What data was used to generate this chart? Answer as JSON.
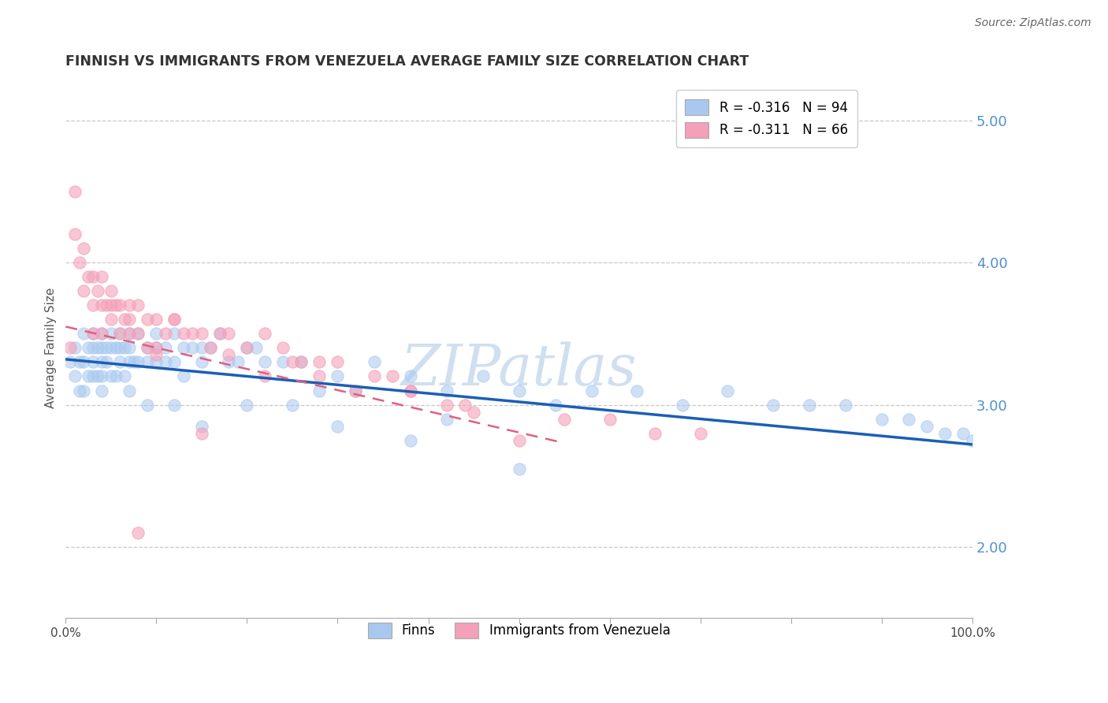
{
  "title": "FINNISH VS IMMIGRANTS FROM VENEZUELA AVERAGE FAMILY SIZE CORRELATION CHART",
  "source": "Source: ZipAtlas.com",
  "ylabel": "Average Family Size",
  "right_yticks": [
    2.0,
    3.0,
    4.0,
    5.0
  ],
  "legend_finn_r": "R = -0.316",
  "legend_finn_n": "N = 94",
  "legend_immig_r": "R = -0.311",
  "legend_immig_n": "N = 66",
  "finn_color": "#a8c8f0",
  "immig_color": "#f4a0b8",
  "finn_line_color": "#1a5fb4",
  "immig_line_color": "#e06080",
  "xlim": [
    0.0,
    1.0
  ],
  "ylim": [
    1.5,
    5.3
  ],
  "finn_scatter_x": [
    0.005,
    0.01,
    0.01,
    0.015,
    0.015,
    0.02,
    0.02,
    0.02,
    0.025,
    0.025,
    0.03,
    0.03,
    0.03,
    0.03,
    0.035,
    0.035,
    0.04,
    0.04,
    0.04,
    0.04,
    0.04,
    0.045,
    0.045,
    0.05,
    0.05,
    0.05,
    0.055,
    0.055,
    0.06,
    0.06,
    0.06,
    0.065,
    0.065,
    0.07,
    0.07,
    0.07,
    0.075,
    0.08,
    0.08,
    0.09,
    0.09,
    0.1,
    0.1,
    0.1,
    0.11,
    0.11,
    0.12,
    0.12,
    0.13,
    0.13,
    0.14,
    0.15,
    0.15,
    0.16,
    0.17,
    0.18,
    0.19,
    0.2,
    0.21,
    0.22,
    0.24,
    0.26,
    0.28,
    0.3,
    0.32,
    0.34,
    0.38,
    0.42,
    0.46,
    0.5,
    0.54,
    0.58,
    0.63,
    0.68,
    0.73,
    0.78,
    0.82,
    0.86,
    0.9,
    0.93,
    0.95,
    0.97,
    0.99,
    1.0,
    0.5,
    0.38,
    0.42,
    0.3,
    0.25,
    0.2,
    0.15,
    0.12,
    0.09,
    0.07
  ],
  "finn_scatter_y": [
    3.3,
    3.2,
    3.4,
    3.3,
    3.1,
    3.5,
    3.3,
    3.1,
    3.4,
    3.2,
    3.5,
    3.4,
    3.3,
    3.2,
    3.4,
    3.2,
    3.5,
    3.4,
    3.3,
    3.2,
    3.1,
    3.4,
    3.3,
    3.5,
    3.4,
    3.2,
    3.4,
    3.2,
    3.5,
    3.4,
    3.3,
    3.4,
    3.2,
    3.5,
    3.4,
    3.3,
    3.3,
    3.5,
    3.3,
    3.4,
    3.3,
    3.5,
    3.4,
    3.3,
    3.4,
    3.3,
    3.5,
    3.3,
    3.4,
    3.2,
    3.4,
    3.4,
    3.3,
    3.4,
    3.5,
    3.3,
    3.3,
    3.4,
    3.4,
    3.3,
    3.3,
    3.3,
    3.1,
    3.2,
    3.1,
    3.3,
    3.2,
    3.1,
    3.2,
    3.1,
    3.0,
    3.1,
    3.1,
    3.0,
    3.1,
    3.0,
    3.0,
    3.0,
    2.9,
    2.9,
    2.85,
    2.8,
    2.8,
    2.75,
    2.55,
    2.75,
    2.9,
    2.85,
    3.0,
    3.0,
    2.85,
    3.0,
    3.0,
    3.1
  ],
  "immig_scatter_x": [
    0.005,
    0.01,
    0.01,
    0.015,
    0.02,
    0.02,
    0.025,
    0.03,
    0.03,
    0.03,
    0.035,
    0.04,
    0.04,
    0.04,
    0.045,
    0.05,
    0.05,
    0.055,
    0.06,
    0.06,
    0.065,
    0.07,
    0.07,
    0.08,
    0.08,
    0.09,
    0.09,
    0.1,
    0.1,
    0.11,
    0.12,
    0.13,
    0.14,
    0.15,
    0.16,
    0.17,
    0.18,
    0.2,
    0.22,
    0.24,
    0.26,
    0.28,
    0.3,
    0.34,
    0.38,
    0.42,
    0.5,
    0.36,
    0.44,
    0.32,
    0.28,
    0.55,
    0.6,
    0.65,
    0.7,
    0.45,
    0.38,
    0.25,
    0.18,
    0.12,
    0.07,
    0.05,
    0.08,
    0.1,
    0.15,
    0.22
  ],
  "immig_scatter_y": [
    3.4,
    4.5,
    4.2,
    4.0,
    4.1,
    3.8,
    3.9,
    3.9,
    3.7,
    3.5,
    3.8,
    3.9,
    3.7,
    3.5,
    3.7,
    3.8,
    3.6,
    3.7,
    3.7,
    3.5,
    3.6,
    3.7,
    3.5,
    3.7,
    3.5,
    3.6,
    3.4,
    3.6,
    3.4,
    3.5,
    3.6,
    3.5,
    3.5,
    3.5,
    3.4,
    3.5,
    3.5,
    3.4,
    3.5,
    3.4,
    3.3,
    3.3,
    3.3,
    3.2,
    3.1,
    3.0,
    2.75,
    3.2,
    3.0,
    3.1,
    3.2,
    2.9,
    2.9,
    2.8,
    2.8,
    2.95,
    3.1,
    3.3,
    3.35,
    3.6,
    3.6,
    3.7,
    2.1,
    3.35,
    2.8,
    3.2
  ],
  "finn_trend_x": [
    0.0,
    1.0
  ],
  "finn_trend_y": [
    3.32,
    2.72
  ],
  "immig_trend_x": [
    0.0,
    0.55
  ],
  "immig_trend_y": [
    3.55,
    2.73
  ],
  "background_color": "#ffffff",
  "grid_color": "#c8c8c8",
  "right_tick_color": "#5090d0",
  "title_color": "#333333",
  "source_color": "#666666",
  "watermark_text": "ZIPatlas",
  "watermark_color": "#d0dff0"
}
